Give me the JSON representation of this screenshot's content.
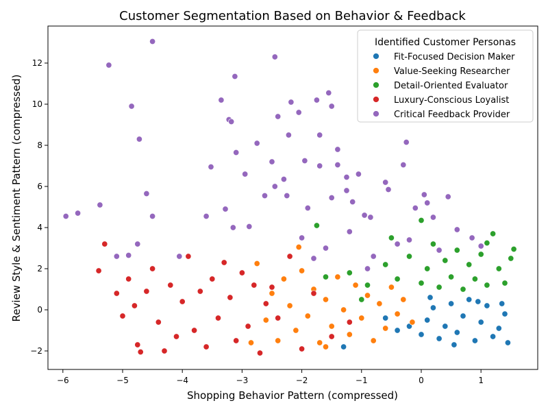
{
  "chart_data": {
    "type": "scatter",
    "title": "Customer Segmentation Based on Behavior & Feedback",
    "xlabel": "Shopping Behavior Pattern (compressed)",
    "ylabel": "Review Style & Sentiment Pattern (compressed)",
    "xlim": [
      -6.25,
      1.95
    ],
    "ylim": [
      -2.9,
      13.8
    ],
    "xticks": [
      -6,
      -5,
      -4,
      -3,
      -2,
      -1,
      0,
      1
    ],
    "yticks": [
      -2,
      0,
      2,
      4,
      6,
      8,
      10,
      12
    ],
    "grid": false,
    "legend": {
      "title": "Identified Customer Personas",
      "position": "top-right"
    },
    "series": [
      {
        "name": "Fit-Focused Decision Maker",
        "color": "#1f77b4",
        "points": [
          [
            0.0,
            -1.2
          ],
          [
            0.1,
            -0.5
          ],
          [
            0.2,
            0.1
          ],
          [
            0.3,
            -1.4
          ],
          [
            0.4,
            -0.8
          ],
          [
            0.5,
            0.3
          ],
          [
            0.6,
            -1.1
          ],
          [
            0.7,
            -0.3
          ],
          [
            0.8,
            0.5
          ],
          [
            0.9,
            -1.5
          ],
          [
            1.0,
            -0.6
          ],
          [
            1.1,
            0.2
          ],
          [
            1.2,
            -1.3
          ],
          [
            1.3,
            -0.9
          ],
          [
            1.4,
            -0.2
          ],
          [
            1.45,
            -1.6
          ],
          [
            -0.2,
            -0.8
          ],
          [
            -0.4,
            -1.0
          ],
          [
            -0.6,
            -0.4
          ],
          [
            -1.3,
            -1.8
          ],
          [
            0.15,
            0.6
          ],
          [
            0.55,
            -1.7
          ],
          [
            0.95,
            0.4
          ],
          [
            1.35,
            0.3
          ]
        ]
      },
      {
        "name": "Value-Seeking Researcher",
        "color": "#ff7f0e",
        "points": [
          [
            -2.6,
            -0.5
          ],
          [
            -2.5,
            0.8
          ],
          [
            -2.4,
            -1.5
          ],
          [
            -2.3,
            1.5
          ],
          [
            -2.2,
            0.2
          ],
          [
            -2.1,
            -1.0
          ],
          [
            -2.0,
            1.9
          ],
          [
            -1.9,
            -0.3
          ],
          [
            -1.8,
            1.0
          ],
          [
            -1.7,
            -1.6
          ],
          [
            -1.6,
            0.5
          ],
          [
            -1.5,
            -0.8
          ],
          [
            -1.4,
            1.6
          ],
          [
            -1.3,
            0.0
          ],
          [
            -1.2,
            -1.2
          ],
          [
            -1.1,
            1.2
          ],
          [
            -1.0,
            -0.4
          ],
          [
            -0.9,
            0.7
          ],
          [
            -0.8,
            -1.5
          ],
          [
            -0.7,
            0.3
          ],
          [
            -0.6,
            -0.9
          ],
          [
            -0.5,
            1.1
          ],
          [
            -0.4,
            -0.2
          ],
          [
            -0.3,
            0.5
          ],
          [
            -2.75,
            2.25
          ],
          [
            -2.05,
            3.05
          ],
          [
            -2.85,
            -1.6
          ],
          [
            -1.6,
            -1.8
          ],
          [
            -0.15,
            -0.6
          ]
        ]
      },
      {
        "name": "Detail-Oriented Evaluator",
        "color": "#2ca02c",
        "points": [
          [
            -1.6,
            1.6
          ],
          [
            -1.2,
            1.8
          ],
          [
            -0.9,
            1.2
          ],
          [
            -0.6,
            2.2
          ],
          [
            -0.4,
            1.5
          ],
          [
            -0.2,
            2.6
          ],
          [
            0.0,
            1.3
          ],
          [
            0.1,
            2.0
          ],
          [
            0.2,
            3.2
          ],
          [
            0.3,
            1.1
          ],
          [
            0.4,
            2.4
          ],
          [
            0.5,
            1.6
          ],
          [
            0.6,
            2.9
          ],
          [
            0.7,
            1.0
          ],
          [
            0.8,
            2.2
          ],
          [
            0.9,
            1.5
          ],
          [
            1.0,
            2.7
          ],
          [
            1.1,
            1.2
          ],
          [
            1.2,
            3.7
          ],
          [
            1.3,
            2.0
          ],
          [
            1.4,
            1.3
          ],
          [
            1.5,
            2.5
          ],
          [
            1.55,
            2.95
          ],
          [
            -1.75,
            4.1
          ],
          [
            0.0,
            4.35
          ],
          [
            1.1,
            3.25
          ],
          [
            -1.0,
            0.5
          ],
          [
            -0.5,
            3.5
          ]
        ]
      },
      {
        "name": "Luxury-Conscious Loyalist",
        "color": "#d62728",
        "points": [
          [
            -5.3,
            3.2
          ],
          [
            -5.4,
            1.9
          ],
          [
            -5.1,
            0.8
          ],
          [
            -5.0,
            -0.3
          ],
          [
            -4.9,
            1.5
          ],
          [
            -4.8,
            0.2
          ],
          [
            -4.75,
            -1.7
          ],
          [
            -4.7,
            -2.05
          ],
          [
            -4.6,
            0.9
          ],
          [
            -4.5,
            2.0
          ],
          [
            -4.4,
            -0.6
          ],
          [
            -4.3,
            -2.0
          ],
          [
            -4.2,
            1.2
          ],
          [
            -4.1,
            -1.3
          ],
          [
            -4.0,
            0.4
          ],
          [
            -3.9,
            2.6
          ],
          [
            -3.8,
            -1.0
          ],
          [
            -3.7,
            0.9
          ],
          [
            -3.6,
            -1.8
          ],
          [
            -3.5,
            1.5
          ],
          [
            -3.4,
            -0.4
          ],
          [
            -3.3,
            2.3
          ],
          [
            -3.2,
            0.6
          ],
          [
            -3.1,
            -1.5
          ],
          [
            -3.0,
            1.8
          ],
          [
            -2.9,
            -0.8
          ],
          [
            -2.8,
            1.2
          ],
          [
            -2.7,
            -2.1
          ],
          [
            -2.6,
            0.3
          ],
          [
            -2.5,
            1.1
          ],
          [
            -2.4,
            -0.4
          ],
          [
            -2.2,
            2.6
          ],
          [
            -2.0,
            -1.9
          ],
          [
            -1.8,
            0.8
          ],
          [
            -1.5,
            -1.3
          ],
          [
            -1.2,
            -0.6
          ]
        ]
      },
      {
        "name": "Critical Feedback Provider",
        "color": "#9467bd",
        "points": [
          [
            -5.95,
            4.55
          ],
          [
            -5.75,
            4.7
          ],
          [
            -5.38,
            5.1
          ],
          [
            -5.23,
            11.9
          ],
          [
            -5.1,
            2.6
          ],
          [
            -4.9,
            2.65
          ],
          [
            -4.85,
            9.9
          ],
          [
            -4.75,
            3.2
          ],
          [
            -4.72,
            8.3
          ],
          [
            -4.6,
            5.65
          ],
          [
            -4.5,
            13.05
          ],
          [
            -4.5,
            4.55
          ],
          [
            -4.05,
            2.6
          ],
          [
            -3.6,
            4.55
          ],
          [
            -3.52,
            6.95
          ],
          [
            -3.35,
            10.2
          ],
          [
            -3.28,
            4.9
          ],
          [
            -3.22,
            9.25
          ],
          [
            -3.18,
            9.15
          ],
          [
            -3.12,
            11.35
          ],
          [
            -3.1,
            7.65
          ],
          [
            -3.15,
            4.0
          ],
          [
            -2.95,
            6.6
          ],
          [
            -2.88,
            4.05
          ],
          [
            -2.75,
            8.1
          ],
          [
            -2.62,
            5.55
          ],
          [
            -2.5,
            7.2
          ],
          [
            -2.45,
            12.3
          ],
          [
            -2.45,
            6.0
          ],
          [
            -2.4,
            9.4
          ],
          [
            -2.3,
            6.35
          ],
          [
            -2.25,
            5.55
          ],
          [
            -2.22,
            8.5
          ],
          [
            -2.18,
            10.1
          ],
          [
            -2.05,
            9.6
          ],
          [
            -1.95,
            7.25
          ],
          [
            -1.9,
            4.95
          ],
          [
            -1.75,
            10.2
          ],
          [
            -1.7,
            8.5
          ],
          [
            -1.7,
            7.0
          ],
          [
            -1.55,
            10.55
          ],
          [
            -1.5,
            9.9
          ],
          [
            -1.5,
            5.45
          ],
          [
            -1.4,
            7.8
          ],
          [
            -1.4,
            7.05
          ],
          [
            -1.25,
            6.45
          ],
          [
            -1.25,
            5.8
          ],
          [
            -1.15,
            5.25
          ],
          [
            -1.05,
            6.6
          ],
          [
            -0.95,
            4.6
          ],
          [
            -0.85,
            4.5
          ],
          [
            -0.6,
            6.2
          ],
          [
            -0.55,
            5.85
          ],
          [
            -0.3,
            7.05
          ],
          [
            -0.25,
            8.15
          ],
          [
            -0.1,
            4.95
          ],
          [
            0.05,
            5.6
          ],
          [
            0.1,
            5.2
          ],
          [
            0.2,
            4.5
          ],
          [
            0.45,
            5.5
          ],
          [
            0.6,
            3.9
          ],
          [
            0.85,
            3.5
          ],
          [
            -2.0,
            3.5
          ],
          [
            -1.6,
            3.0
          ],
          [
            -1.2,
            3.8
          ],
          [
            -0.8,
            2.6
          ],
          [
            -0.4,
            3.2
          ],
          [
            -0.9,
            2.0
          ],
          [
            -1.8,
            2.5
          ],
          [
            -0.2,
            3.4
          ],
          [
            0.3,
            2.9
          ],
          [
            1.0,
            3.1
          ]
        ]
      }
    ]
  }
}
